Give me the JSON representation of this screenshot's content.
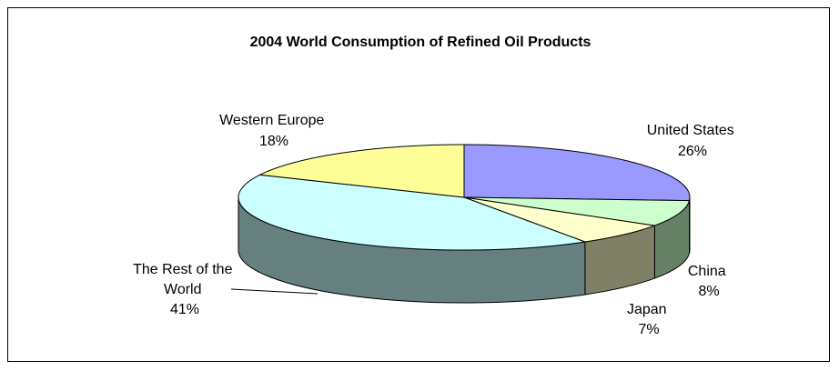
{
  "chart_data": {
    "type": "pie",
    "style": "3d-exploded-none",
    "title": "2004 World Consumption of Refined Oil Products",
    "slices": [
      {
        "label": "United States",
        "percent_text": "26%",
        "value": 26,
        "color": "#9999ff"
      },
      {
        "label": "China",
        "percent_text": "8%",
        "value": 8,
        "color": "#ccffcc"
      },
      {
        "label": "Japan",
        "percent_text": "7%",
        "value": 7,
        "color": "#ffffcc"
      },
      {
        "label": "The Rest of the World",
        "percent_text": "41%",
        "value": 41,
        "color": "#ccffff"
      },
      {
        "label": "Western Europe",
        "percent_text": "18%",
        "value": 18,
        "color": "#ffff99"
      }
    ],
    "legend": "none"
  }
}
